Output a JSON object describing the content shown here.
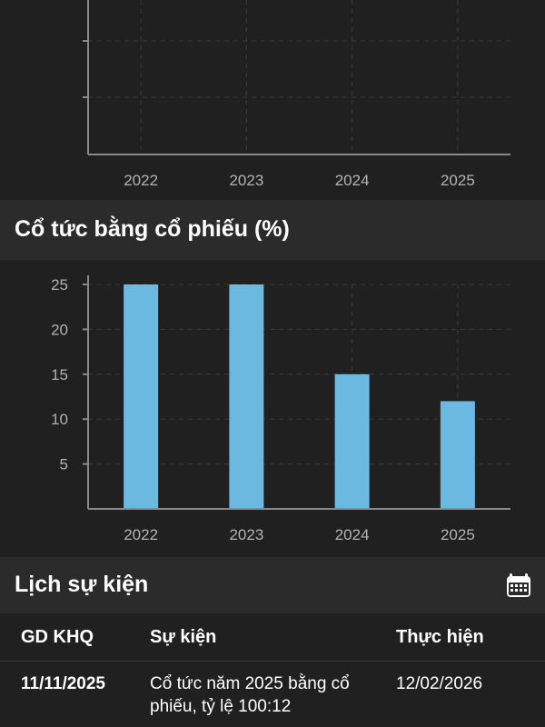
{
  "top_chart": {
    "categories": [
      "2022",
      "2023",
      "2024",
      "2025"
    ],
    "ylim": [
      0,
      30
    ],
    "grid": true
  },
  "dividend_section": {
    "title": "Cổ tức bằng cổ phiếu (%)"
  },
  "chart_data": {
    "type": "bar",
    "title": "Cổ tức bằng cổ phiếu (%)",
    "categories": [
      "2022",
      "2023",
      "2024",
      "2025"
    ],
    "values": [
      25,
      25,
      15,
      12
    ],
    "yticks": [
      "5",
      "10",
      "15",
      "20",
      "25"
    ],
    "ylim": [
      0,
      25
    ],
    "xlabel": "",
    "ylabel": "",
    "grid": true,
    "bar_color": "#6bb8e0"
  },
  "events_section": {
    "title": "Lịch sự kiện",
    "calendar_icon": "calendar-icon"
  },
  "events_table": {
    "headers": [
      "GD KHQ",
      "Sự kiện",
      "Thực hiện"
    ],
    "rows": [
      {
        "ex_date": "11/11/2025",
        "event": "Cổ tức năm 2025 bằng cổ phiếu, tỷ lệ 100:12",
        "execution_date": "12/02/2026"
      }
    ]
  },
  "colors": {
    "background": "#202020",
    "header_background": "#2b2b2b",
    "bar": "#6bb8e0",
    "axis": "#8a8a8a",
    "grid": "#3a3a3a",
    "tick_text": "#b3b3b3"
  }
}
